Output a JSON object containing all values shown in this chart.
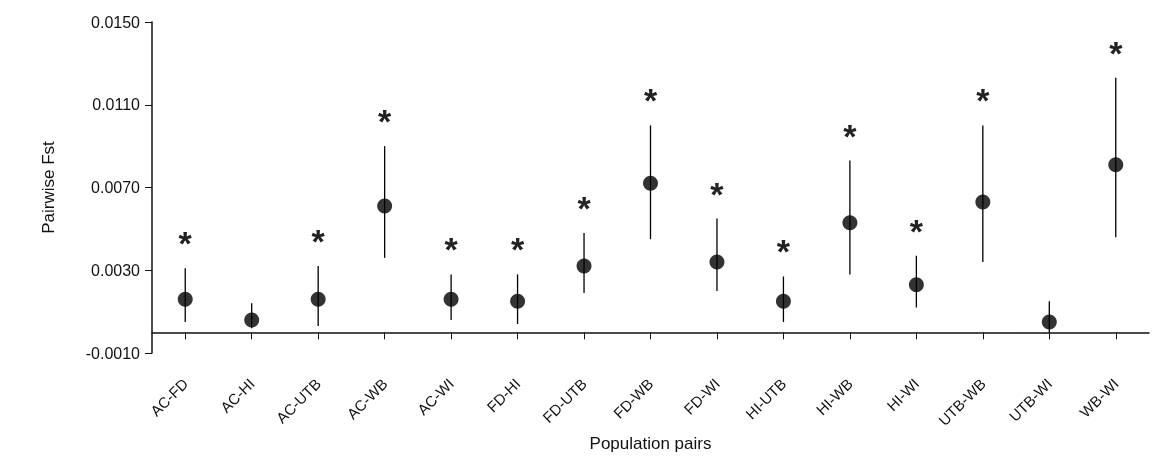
{
  "chart_data": {
    "type": "scatter",
    "xlabel": "Population pairs",
    "ylabel": "Pairwise Fst",
    "color": "#000000",
    "marker": "circle",
    "grid": false,
    "categories": [
      "AC-FD",
      "AC-HI",
      "AC-UTB",
      "AC-WB",
      "AC-WI",
      "FD-HI",
      "FD-UTB",
      "FD-WB",
      "FD-WI",
      "HI-UTB",
      "HI-WB",
      "HI-WI",
      "UTB-WB",
      "UTB-WI",
      "WB-WI"
    ],
    "values": [
      0.0016,
      0.0006,
      0.0016,
      0.0061,
      0.0016,
      0.0015,
      0.0032,
      0.0072,
      0.0034,
      0.0015,
      0.0053,
      0.0023,
      0.0063,
      0.0005,
      0.0081
    ],
    "errors": [
      [
        0.0005,
        0.0031
      ],
      [
        0.0002,
        0.0014
      ],
      [
        0.0003,
        0.0032
      ],
      [
        0.0036,
        0.009
      ],
      [
        0.0006,
        0.0028
      ],
      [
        0.0004,
        0.0028
      ],
      [
        0.0019,
        0.0048
      ],
      [
        0.0045,
        0.01
      ],
      [
        0.002,
        0.0055
      ],
      [
        0.0005,
        0.0027
      ],
      [
        0.0028,
        0.0083
      ],
      [
        0.0012,
        0.0037
      ],
      [
        0.0034,
        0.01
      ],
      [
        0.0,
        0.0015
      ],
      [
        0.0046,
        0.0123
      ]
    ],
    "ylim": [
      -0.001,
      0.015
    ],
    "yticks": [
      {
        "value": -0.001,
        "label": "-0.0010"
      },
      {
        "value": 0.003,
        "label": "0.0030"
      },
      {
        "value": 0.007,
        "label": "0.0070"
      },
      {
        "value": 0.011,
        "label": "0.0110"
      },
      {
        "value": 0.015,
        "label": "0.0150"
      }
    ],
    "value_labels": [
      "*",
      null,
      "*",
      "*",
      "*",
      "*",
      "*",
      "*",
      "*",
      "*",
      "*",
      "*",
      "*",
      null,
      "*"
    ]
  }
}
